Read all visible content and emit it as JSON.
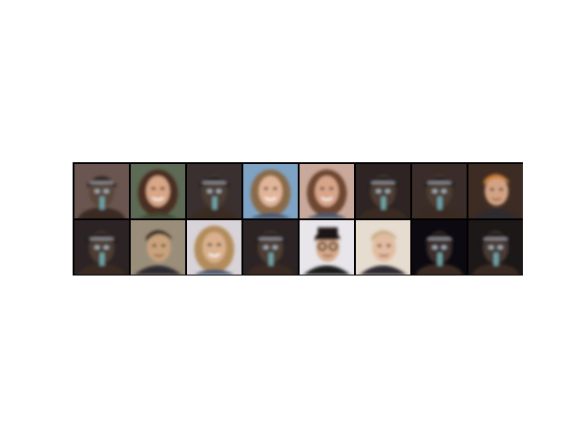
{
  "figure": {
    "background": "#ffffff",
    "grid_border_color": "#000000"
  },
  "grid": {
    "rows": 2,
    "cols": 8,
    "tiles": [
      {
        "kind": "dark-capped",
        "bg": "#6b5550",
        "skin": "#5a4638",
        "hair": "#2a2424"
      },
      {
        "kind": "woman-brown-hair",
        "bg": "#5d6a55",
        "skin": "#d9a686",
        "hair": "#4a2f22"
      },
      {
        "kind": "dark-capped",
        "bg": "#3a3030",
        "skin": "#4e3c33",
        "hair": "#1f1b1b"
      },
      {
        "kind": "woman-light",
        "bg": "#7ea3c4",
        "skin": "#e2b599",
        "hair": "#8a6a4a"
      },
      {
        "kind": "woman-long-hair",
        "bg": "#c9a99b",
        "skin": "#d8a58a",
        "hair": "#6e4630"
      },
      {
        "kind": "dark-capped",
        "bg": "#2e2424",
        "skin": "#4e3c33",
        "hair": "#1f1b1b"
      },
      {
        "kind": "dark-capped",
        "bg": "#3a2c28",
        "skin": "#4e3c33",
        "hair": "#1f1b1b"
      },
      {
        "kind": "man-suit",
        "bg": "#3d2c23",
        "skin": "#d2a283",
        "hair": "#c77a2e"
      },
      {
        "kind": "dark-capped",
        "bg": "#2c2424",
        "skin": "#4e3c33",
        "hair": "#1f1b1b"
      },
      {
        "kind": "man-blurred",
        "bg": "#9a8e7a",
        "skin": "#c9a27c",
        "hair": "#3b2f24"
      },
      {
        "kind": "woman-light",
        "bg": "#d8d3d8",
        "skin": "#dab08e",
        "hair": "#b28c5a"
      },
      {
        "kind": "dark-capped",
        "bg": "#2c2424",
        "skin": "#4e3c33",
        "hair": "#1f1b1b"
      },
      {
        "kind": "man-glasses",
        "bg": "#e8e6ea",
        "skin": "#d7aa8c",
        "hair": "#1c1414"
      },
      {
        "kind": "man-blurred",
        "bg": "#e6dccf",
        "skin": "#e2bca0",
        "hair": "#c9b08a"
      },
      {
        "kind": "dark-capped",
        "bg": "#0c0a10",
        "skin": "#3e2f2a",
        "hair": "#151212"
      },
      {
        "kind": "dark-capped",
        "bg": "#1c1818",
        "skin": "#4a3a34",
        "hair": "#1a1717"
      }
    ]
  }
}
